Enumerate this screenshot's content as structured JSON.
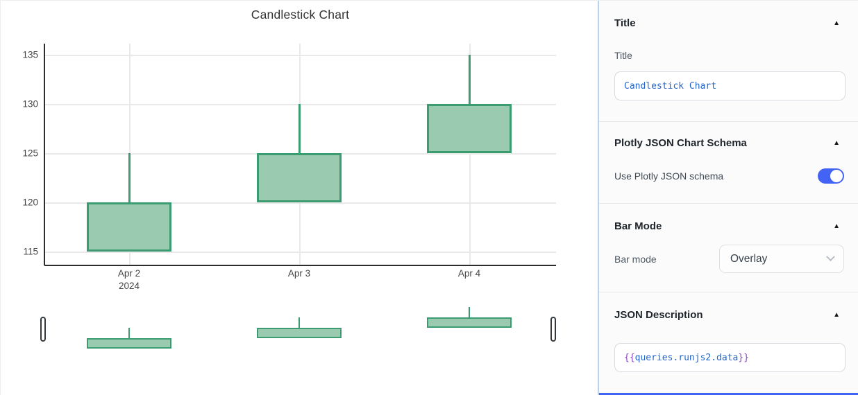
{
  "chart": {
    "x_tick_labels": [
      {
        "line1": "Apr 2",
        "line2": "2024"
      },
      {
        "line1": "Apr 3",
        "line2": ""
      },
      {
        "line1": "Apr 4",
        "line2": ""
      }
    ],
    "colors": {
      "increasing_line": "#3a9c70",
      "increasing_fill": "#9acbb1",
      "grid": "#e9e9e9",
      "axis": "#2d2d2d"
    }
  },
  "chart_data": {
    "type": "candlestick",
    "title": "Candlestick Chart",
    "x": [
      "Apr 2 2024",
      "Apr 3 2024",
      "Apr 4 2024"
    ],
    "open": [
      115,
      120,
      125
    ],
    "high": [
      125,
      130,
      135
    ],
    "low": [
      115,
      120,
      125
    ],
    "close": [
      120,
      125,
      130
    ],
    "yticks": [
      115,
      120,
      125,
      130,
      135
    ],
    "ylim": [
      113.6,
      136.1
    ],
    "grid": true,
    "rangeslider": true,
    "legend": "none"
  },
  "panel": {
    "title_section": {
      "header": "Title",
      "label": "Title",
      "value": "Candlestick Chart"
    },
    "schema_section": {
      "header": "Plotly JSON Chart Schema",
      "toggle_label": "Use Plotly JSON schema",
      "toggle_on": true
    },
    "barmode_section": {
      "header": "Bar Mode",
      "label": "Bar mode",
      "value": "Overlay"
    },
    "json_section": {
      "header": "JSON Description",
      "value_prefix": "{{",
      "value_body": "queries.runjs2.data",
      "value_suffix": "}}"
    },
    "collapse_icon": "▲"
  }
}
